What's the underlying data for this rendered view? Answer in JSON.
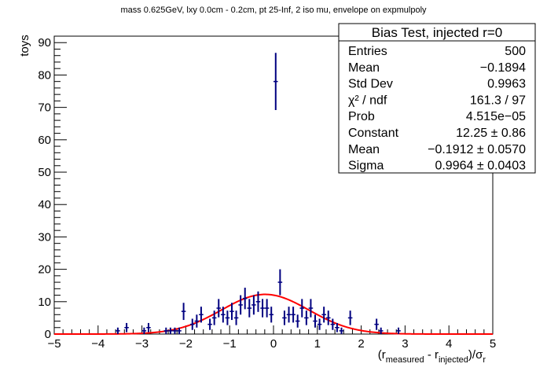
{
  "chart_data": {
    "type": "histogram",
    "title": "mass 0.625GeV, lxy 0.0cm - 0.2cm, pt 25-Inf, 2 iso mu, envelope on expmulpoly",
    "ylabel": "toys",
    "xlabel": {
      "prefix": "(r",
      "sub1": "measured",
      "middle": " - r",
      "sub2": "injected",
      "suffix": ")/σ",
      "sub3": "r"
    },
    "xlim": [
      -5,
      5
    ],
    "ylim": [
      0,
      92
    ],
    "x_ticks": [
      "−5",
      "−4",
      "−3",
      "−2",
      "−1",
      "0",
      "1",
      "2",
      "3",
      "4",
      "5"
    ],
    "y_ticks": [
      "0",
      "10",
      "20",
      "30",
      "40",
      "50",
      "60",
      "70",
      "80",
      "90"
    ],
    "bin_width": 0.1,
    "points": [
      {
        "x": -3.55,
        "y": 1
      },
      {
        "x": -3.35,
        "y": 2
      },
      {
        "x": -2.95,
        "y": 1
      },
      {
        "x": -2.85,
        "y": 2
      },
      {
        "x": -2.45,
        "y": 1
      },
      {
        "x": -2.35,
        "y": 1
      },
      {
        "x": -2.25,
        "y": 1
      },
      {
        "x": -2.15,
        "y": 1
      },
      {
        "x": -2.05,
        "y": 7
      },
      {
        "x": -1.85,
        "y": 3
      },
      {
        "x": -1.75,
        "y": 4
      },
      {
        "x": -1.65,
        "y": 6
      },
      {
        "x": -1.45,
        "y": 3
      },
      {
        "x": -1.35,
        "y": 5
      },
      {
        "x": -1.25,
        "y": 8
      },
      {
        "x": -1.15,
        "y": 6
      },
      {
        "x": -1.05,
        "y": 5
      },
      {
        "x": -0.95,
        "y": 7
      },
      {
        "x": -0.85,
        "y": 5
      },
      {
        "x": -0.75,
        "y": 9
      },
      {
        "x": -0.65,
        "y": 11
      },
      {
        "x": -0.55,
        "y": 8
      },
      {
        "x": -0.45,
        "y": 9
      },
      {
        "x": -0.35,
        "y": 10
      },
      {
        "x": -0.25,
        "y": 8
      },
      {
        "x": -0.15,
        "y": 8
      },
      {
        "x": -0.05,
        "y": 6
      },
      {
        "x": 0.05,
        "y": 78
      },
      {
        "x": 0.15,
        "y": 16
      },
      {
        "x": 0.25,
        "y": 5
      },
      {
        "x": 0.35,
        "y": 6
      },
      {
        "x": 0.45,
        "y": 6
      },
      {
        "x": 0.55,
        "y": 4
      },
      {
        "x": 0.65,
        "y": 8
      },
      {
        "x": 0.75,
        "y": 5
      },
      {
        "x": 0.85,
        "y": 8
      },
      {
        "x": 0.95,
        "y": 4
      },
      {
        "x": 1.05,
        "y": 3
      },
      {
        "x": 1.15,
        "y": 6
      },
      {
        "x": 1.25,
        "y": 5
      },
      {
        "x": 1.35,
        "y": 3
      },
      {
        "x": 1.45,
        "y": 2
      },
      {
        "x": 1.55,
        "y": 1
      },
      {
        "x": 1.75,
        "y": 5
      },
      {
        "x": 2.35,
        "y": 3
      },
      {
        "x": 2.45,
        "y": 1
      },
      {
        "x": 2.85,
        "y": 1
      }
    ],
    "fit": {
      "type": "gaussian",
      "constant": 12.25,
      "mean": -0.1912,
      "sigma": 0.9964,
      "color": "#ff0000"
    },
    "marker_color": "#000080",
    "stats_box": {
      "title": "Bias Test, injected r=0",
      "rows": [
        {
          "label": "Entries",
          "value": "500"
        },
        {
          "label": "Mean",
          "value": "−0.1894"
        },
        {
          "label": "Std Dev",
          "value": "0.9963"
        },
        {
          "label": "χ² / ndf",
          "value": "161.3 / 97"
        },
        {
          "label": "Prob",
          "value": "4.515e−05"
        },
        {
          "label": "Constant",
          "value": "12.25 ± 0.86"
        },
        {
          "label": "Mean",
          "value": "−0.1912 ± 0.0570"
        },
        {
          "label": "Sigma",
          "value": "0.9964 ± 0.0403"
        }
      ]
    }
  }
}
